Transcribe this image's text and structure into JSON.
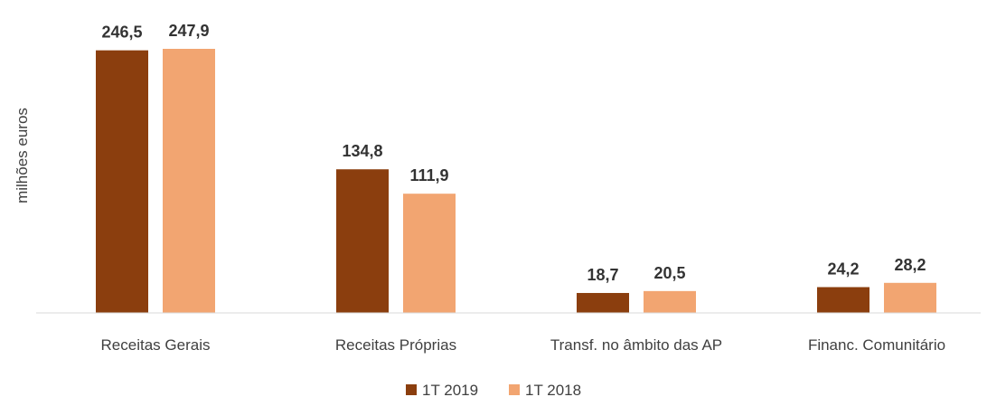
{
  "chart_data": {
    "type": "bar",
    "ylabel": "milhões euros",
    "categories": [
      "Receitas Gerais",
      "Receitas Próprias",
      "Transf. no âmbito das AP",
      "Financ. Comunitário"
    ],
    "series": [
      {
        "name": "1T 2019",
        "color": "#8B3E0E",
        "values": [
          246.5,
          134.8,
          18.7,
          24.2
        ],
        "labels": [
          "246,5",
          "134,8",
          "18,7",
          "24,2"
        ]
      },
      {
        "name": "1T 2018",
        "color": "#F2A571",
        "values": [
          247.9,
          111.9,
          20.5,
          28.2
        ],
        "labels": [
          "247,9",
          "111,9",
          "20,5",
          "28,2"
        ]
      }
    ],
    "ylim": [
      0,
      250
    ],
    "grid": false,
    "legend": "bottom-center"
  }
}
